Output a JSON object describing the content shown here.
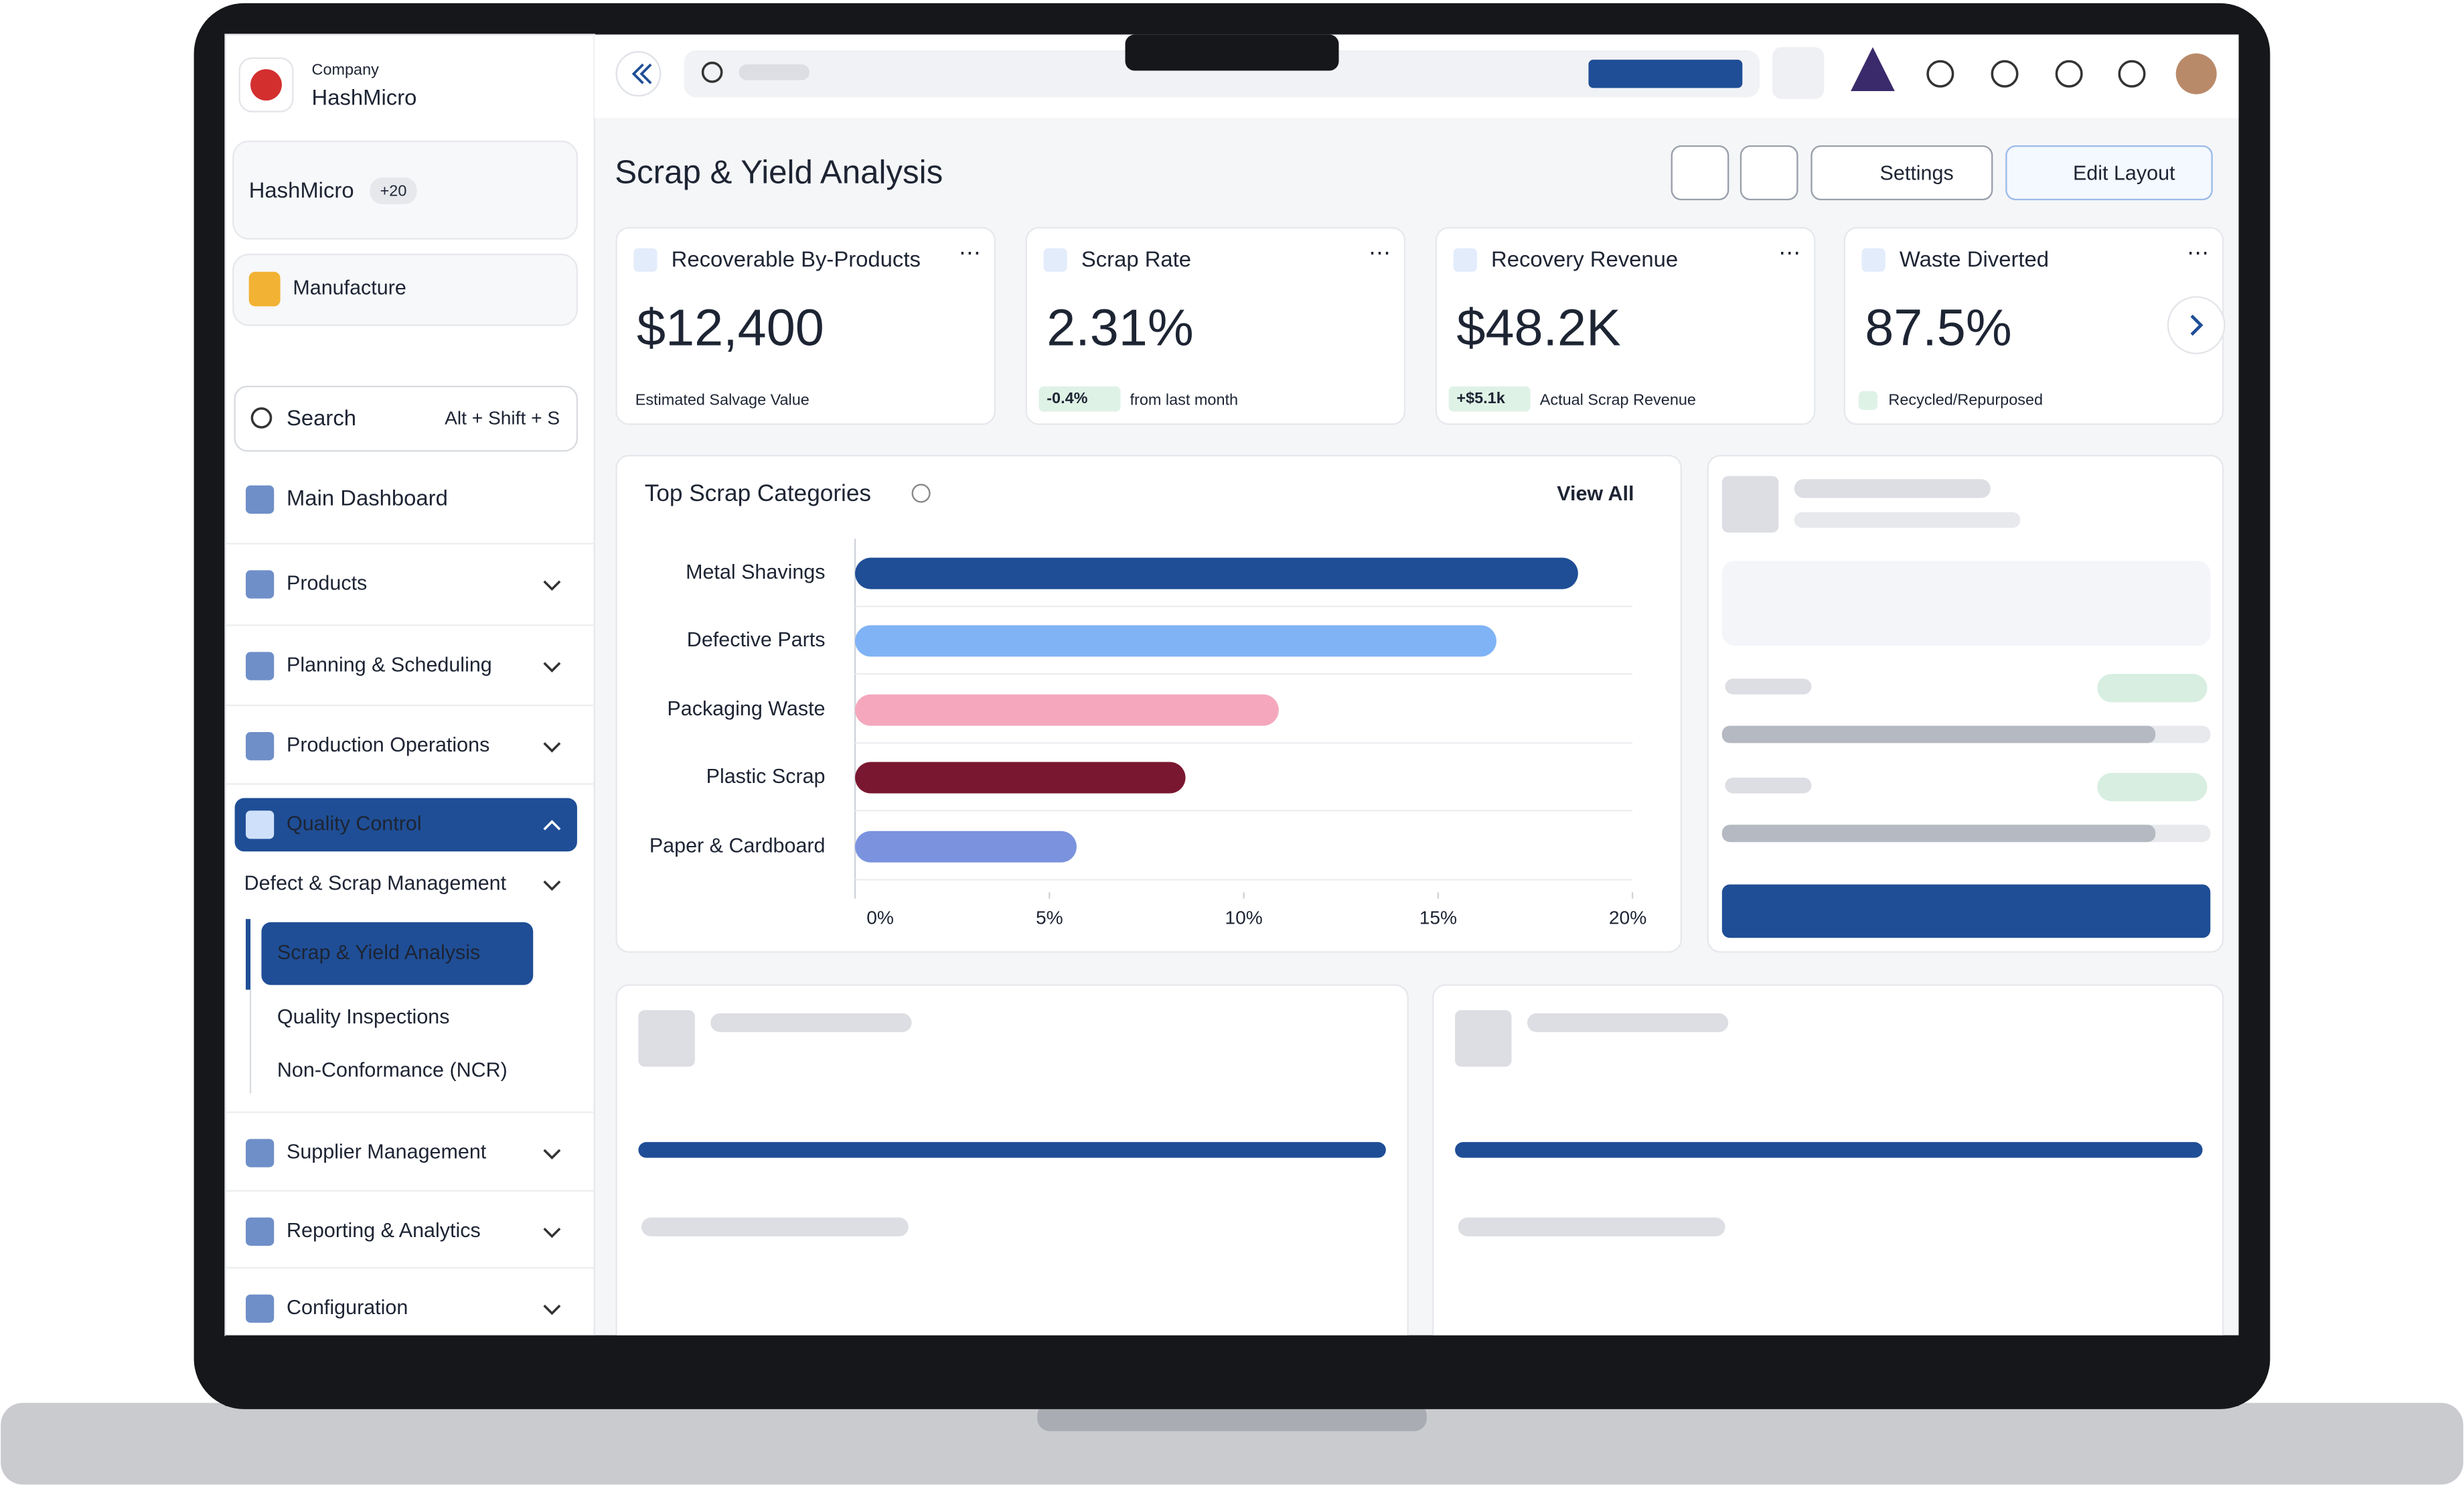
{
  "sidebar": {
    "company_label": "Company",
    "company_name": "HashMicro",
    "workspace": "HashMicro",
    "workspace_badge": "+20",
    "module": "Manufacture",
    "search_placeholder": "Search",
    "search_shortcut": "Alt + Shift + S",
    "menu": [
      "Main Dashboard",
      "Products",
      "Planning & Scheduling",
      "Production Operations",
      "Quality Control"
    ],
    "submenu_group": "Defect & Scrap Management",
    "submenu": [
      "Scrap & Yield Analysis",
      "Quality Inspections",
      "Non-Conformance (NCR)"
    ],
    "menu_after": [
      "Supplier Management",
      "Reporting & Analytics",
      "Configuration"
    ]
  },
  "header": {
    "title": "Scrap & Yield Analysis",
    "settings_button": "Settings",
    "edit_button": "Edit Layout"
  },
  "kpis": [
    {
      "title": "Recoverable By-Products",
      "value": "$12,400",
      "note": "Estimated Salvage Value"
    },
    {
      "title": "Scrap Rate",
      "value": "2.31%",
      "badge": "-0.4%",
      "note": "from last month"
    },
    {
      "title": "Recovery Revenue",
      "value": "$48.2K",
      "badge": "+$5.1k",
      "note": "Actual Scrap Revenue"
    },
    {
      "title": "Waste Diverted",
      "value": "87.5%",
      "note": "Recycled/Repurposed"
    }
  ],
  "chart": {
    "type": "bar",
    "orientation": "horizontal",
    "title": "Top Scrap Categories",
    "link": "View All",
    "categories": [
      "Metal Shavings",
      "Defective Parts",
      "Packaging Waste",
      "Plastic Scrap",
      "Paper & Cardboard"
    ],
    "values": [
      18.6,
      16.5,
      10.9,
      8.5,
      5.7
    ],
    "colors": [
      "#1f4e96",
      "#7fb3f5",
      "#f5a8bd",
      "#7a1730",
      "#7b93de"
    ],
    "xlim": [
      0,
      20
    ],
    "xticks": [
      {
        "value": 0,
        "label": "0%"
      },
      {
        "value": 5,
        "label": "5%"
      },
      {
        "value": 10,
        "label": "10%"
      },
      {
        "value": 15,
        "label": "15%"
      },
      {
        "value": 20,
        "label": "20%"
      }
    ]
  }
}
